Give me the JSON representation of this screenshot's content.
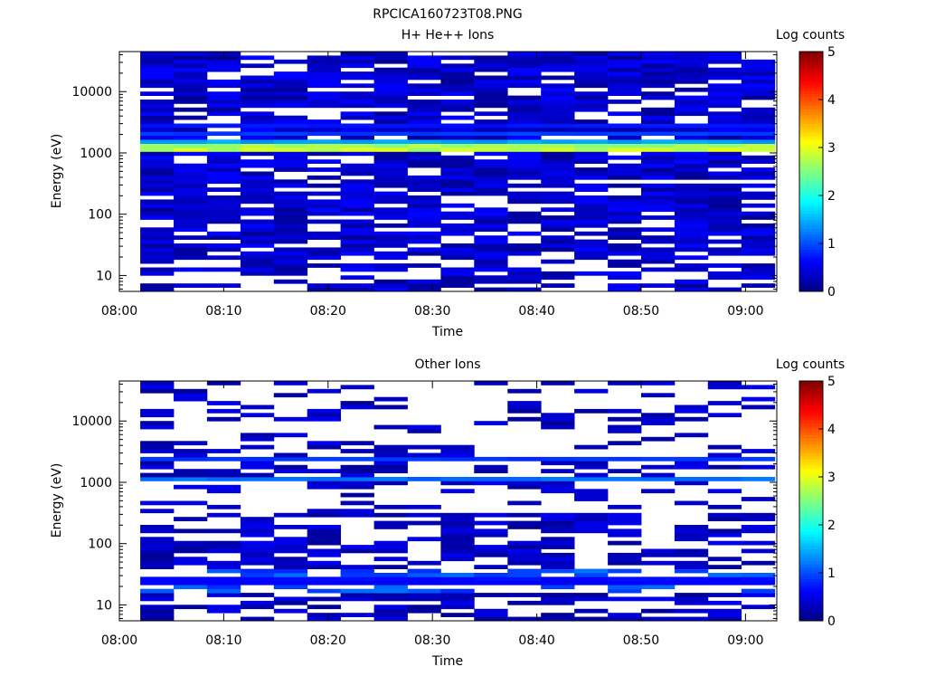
{
  "page_title": "RPCICA160723T08.PNG",
  "colorbar": {
    "stops": [
      "#000080",
      "#0000ff",
      "#0080ff",
      "#00ffff",
      "#80ff80",
      "#ffff00",
      "#ff8000",
      "#ff0000",
      "#800000"
    ]
  },
  "chart_data": [
    {
      "type": "heatmap",
      "title": "H+ He++ Ions",
      "xlabel": "Time",
      "ylabel": "Energy (eV)",
      "x_ticks": [
        "08:00",
        "08:10",
        "08:20",
        "08:30",
        "08:40",
        "08:50",
        "09:00"
      ],
      "y_ticks": [
        "10",
        "100",
        "1000",
        "10000"
      ],
      "y_scale": "log",
      "x_range_minutes": [
        0,
        63
      ],
      "y_range_ev": [
        5.5,
        45000
      ],
      "colorbar_label": "Log counts",
      "colorbar_ticks": [
        "0",
        "1",
        "2",
        "3",
        "4",
        "5"
      ],
      "colorbar_range": [
        0,
        5
      ],
      "data_start_minute": 2,
      "bin_minutes": 3.2,
      "num_time_bins": 19,
      "energy_bins_ev_approx": "log spaced ~5.5 eV to ~45 keV",
      "profile": [
        {
          "energy_ev": 1100,
          "log_counts": 3.4
        },
        {
          "energy_ev": 1300,
          "log_counts": 2.8
        },
        {
          "energy_ev": 1600,
          "log_counts": 1.9
        },
        {
          "energy_ev": 2200,
          "log_counts": 1.6
        },
        {
          "energy_ev": 2700,
          "log_counts": 0.9
        },
        {
          "energy_ev": 5000,
          "log_counts": 0.5
        },
        {
          "energy_ev": 20000,
          "log_counts": 0.35
        },
        {
          "energy_ev": 200,
          "log_counts": 0.3
        },
        {
          "energy_ev": 30,
          "log_counts": 0.2
        },
        {
          "energy_ev": 8,
          "log_counts": 0.15
        }
      ]
    },
    {
      "type": "heatmap",
      "title": "Other Ions",
      "xlabel": "Time",
      "ylabel": "Energy (eV)",
      "x_ticks": [
        "08:00",
        "08:10",
        "08:20",
        "08:30",
        "08:40",
        "08:50",
        "09:00"
      ],
      "y_ticks": [
        "10",
        "100",
        "1000",
        "10000"
      ],
      "y_scale": "log",
      "x_range_minutes": [
        0,
        63
      ],
      "y_range_ev": [
        5.5,
        45000
      ],
      "colorbar_label": "Log counts",
      "colorbar_ticks": [
        "0",
        "1",
        "2",
        "3",
        "4",
        "5"
      ],
      "colorbar_range": [
        0,
        5
      ],
      "data_start_minute": 2,
      "bin_minutes": 3.2,
      "num_time_bins": 19,
      "energy_bins_ev_approx": "log spaced ~5.5 eV to ~45 keV",
      "profile": [
        {
          "energy_ev": 1150,
          "log_counts": 1.2
        },
        {
          "energy_ev": 2400,
          "log_counts": 0.9
        },
        {
          "energy_ev": 28,
          "log_counts": 1.0
        },
        {
          "energy_ev": 22,
          "log_counts": 0.8
        },
        {
          "energy_ev": 100,
          "log_counts": 0.35
        },
        {
          "energy_ev": 10000,
          "log_counts": 0.15
        }
      ]
    }
  ]
}
